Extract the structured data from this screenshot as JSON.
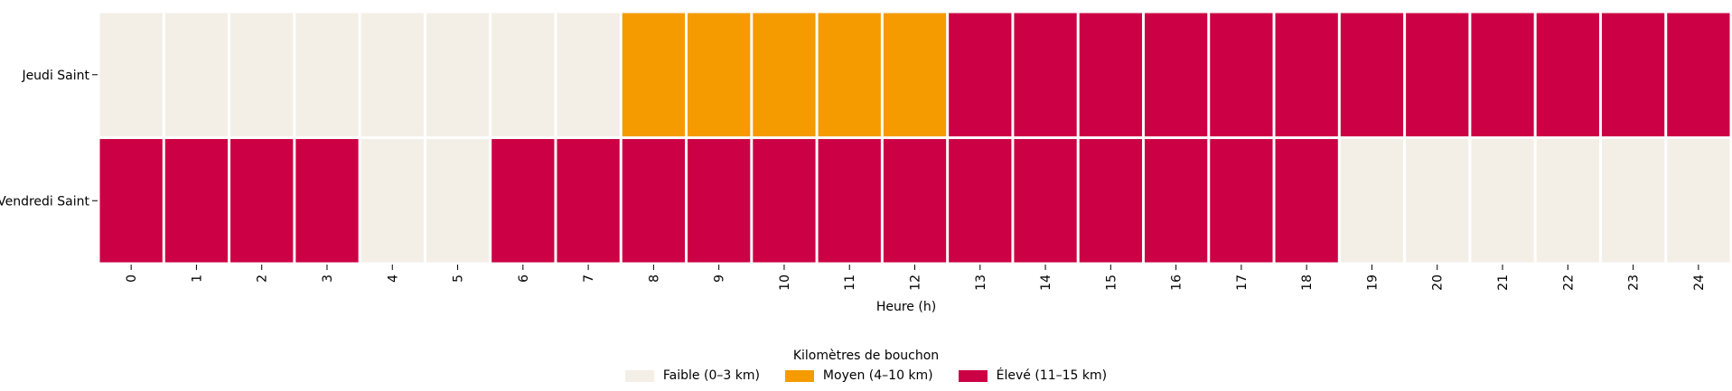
{
  "chart_data": {
    "type": "heatmap",
    "title": "",
    "xlabel": "Heure (h)",
    "ylabel": "",
    "x_categories": [
      "0",
      "1",
      "2",
      "3",
      "4",
      "5",
      "6",
      "7",
      "8",
      "9",
      "10",
      "11",
      "12",
      "13",
      "14",
      "15",
      "16",
      "17",
      "18",
      "19",
      "20",
      "21",
      "22",
      "23",
      "24"
    ],
    "y_categories": [
      "Jeudi Saint",
      "Vendredi Saint"
    ],
    "levels": [
      {
        "key": "faible",
        "label": "Faible (0–3 km)",
        "color": "#f4efe6"
      },
      {
        "key": "moyen",
        "label": "Moyen (4–10 km)",
        "color": "#f59b00"
      },
      {
        "key": "eleve",
        "label": "Élevé (11–15 km)",
        "color": "#cc0044"
      }
    ],
    "values": [
      [
        "faible",
        "faible",
        "faible",
        "faible",
        "faible",
        "faible",
        "faible",
        "faible",
        "moyen",
        "moyen",
        "moyen",
        "moyen",
        "moyen",
        "eleve",
        "eleve",
        "eleve",
        "eleve",
        "eleve",
        "eleve",
        "eleve",
        "eleve",
        "eleve",
        "eleve",
        "eleve",
        "eleve"
      ],
      [
        "eleve",
        "eleve",
        "eleve",
        "eleve",
        "faible",
        "faible",
        "eleve",
        "eleve",
        "eleve",
        "eleve",
        "eleve",
        "eleve",
        "eleve",
        "eleve",
        "eleve",
        "eleve",
        "eleve",
        "eleve",
        "eleve",
        "faible",
        "faible",
        "faible",
        "faible",
        "faible",
        "faible"
      ]
    ],
    "legend": {
      "title": "Kilomètres de bouchon",
      "position": "bottom-center"
    },
    "grid": false
  }
}
